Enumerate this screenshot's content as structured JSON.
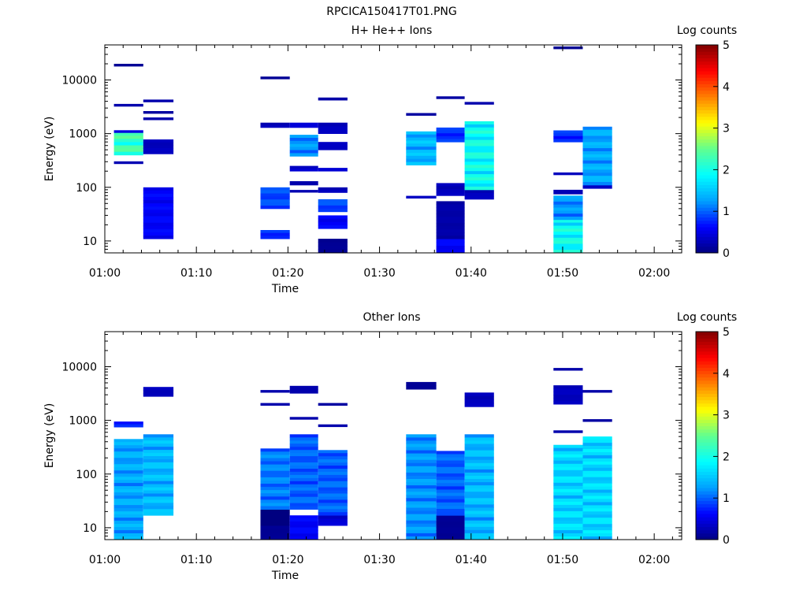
{
  "figure_title": "RPCICA150417T01.PNG",
  "colormap": [
    "#000080",
    "#0000ff",
    "#00a0ff",
    "#00ffff",
    "#60ff90",
    "#ffff00",
    "#ff8000",
    "#ff0000",
    "#800000"
  ],
  "chart_data": [
    {
      "type": "heatmap",
      "title": "H+ He++ Ions",
      "xlabel": "Time",
      "ylabel": "Energy (eV)",
      "x_ticks": [
        "01:00",
        "01:10",
        "01:20",
        "01:30",
        "01:40",
        "01:50",
        "02:00"
      ],
      "y_ticks": [
        "10",
        "100",
        "1000",
        "10000"
      ],
      "y_scale": "log",
      "ylim": [
        6,
        45000
      ],
      "xlim_minutes": [
        0,
        63
      ],
      "colorbar": {
        "label": "Log counts",
        "range": [
          0,
          5
        ],
        "ticks": [
          "0",
          "1",
          "2",
          "3",
          "4",
          "5"
        ]
      },
      "scans": [
        {
          "start": 1.0,
          "end": 4.2,
          "bins": [
            [
              400,
              1050,
              2.2
            ],
            [
              290,
              290,
              0.3
            ],
            [
              3400,
              3400,
              0.2
            ],
            [
              19000,
              19000,
              0.1
            ],
            [
              1100,
              1100,
              0.6
            ]
          ]
        },
        {
          "start": 4.2,
          "end": 7.5,
          "bins": [
            [
              11,
              100,
              0.6
            ],
            [
              420,
              780,
              0.3
            ],
            [
              1900,
              1900,
              0.2
            ],
            [
              2500,
              2500,
              0.2
            ],
            [
              4100,
              4100,
              0.2
            ]
          ]
        },
        {
          "start": 17.0,
          "end": 20.2,
          "bins": [
            [
              11,
              16,
              0.8
            ],
            [
              40,
              100,
              0.9
            ],
            [
              1300,
              1600,
              0.3
            ],
            [
              11000,
              11000,
              0.1
            ]
          ]
        },
        {
          "start": 20.2,
          "end": 23.3,
          "bins": [
            [
              110,
              130,
              0.2
            ],
            [
              200,
              250,
              0.4
            ],
            [
              380,
              950,
              1.2
            ],
            [
              1300,
              1600,
              0.4
            ],
            [
              85,
              85,
              0.3
            ]
          ]
        },
        {
          "start": 23.3,
          "end": 26.5,
          "bins": [
            [
              6,
              11,
              0.1
            ],
            [
              17,
              30,
              0.6
            ],
            [
              35,
              60,
              0.9
            ],
            [
              80,
              100,
              0.3
            ],
            [
              200,
              230,
              0.4
            ],
            [
              500,
              700,
              0.3
            ],
            [
              1000,
              1600,
              0.3
            ],
            [
              4200,
              4700,
              0.2
            ]
          ]
        },
        {
          "start": 32.9,
          "end": 36.2,
          "bins": [
            [
              260,
              1100,
              1.4
            ],
            [
              66,
              66,
              0.3
            ],
            [
              2300,
              2300,
              0.2
            ]
          ]
        },
        {
          "start": 36.2,
          "end": 39.3,
          "bins": [
            [
              6,
              11,
              0.6
            ],
            [
              11,
              55,
              0.2
            ],
            [
              70,
              120,
              0.3
            ],
            [
              700,
              1300,
              0.8
            ],
            [
              4700,
              4700,
              0.2
            ]
          ]
        },
        {
          "start": 39.3,
          "end": 42.5,
          "bins": [
            [
              60,
              90,
              0.3
            ],
            [
              90,
              1700,
              1.9
            ],
            [
              3700,
              3700,
              0.2
            ]
          ]
        },
        {
          "start": 49.0,
          "end": 52.2,
          "bins": [
            [
              6,
              25,
              1.9
            ],
            [
              25,
              70,
              1.2
            ],
            [
              75,
              90,
              0.3
            ],
            [
              180,
              180,
              0.3
            ],
            [
              700,
              1150,
              0.8
            ],
            [
              40000,
              40000,
              0.1
            ]
          ]
        },
        {
          "start": 52.2,
          "end": 55.4,
          "bins": [
            [
              95,
              110,
              0.3
            ],
            [
              110,
              1350,
              1.3
            ]
          ]
        }
      ]
    },
    {
      "type": "heatmap",
      "title": "Other Ions",
      "xlabel": "Time",
      "ylabel": "Energy (eV)",
      "x_ticks": [
        "01:00",
        "01:10",
        "01:20",
        "01:30",
        "01:40",
        "01:50",
        "02:00"
      ],
      "y_ticks": [
        "10",
        "100",
        "1000",
        "10000"
      ],
      "y_scale": "log",
      "ylim": [
        6,
        45000
      ],
      "xlim_minutes": [
        0,
        63
      ],
      "colorbar": {
        "label": "Log counts",
        "range": [
          0,
          5
        ],
        "ticks": [
          "0",
          "1",
          "2",
          "3",
          "4",
          "5"
        ]
      },
      "scans": [
        {
          "start": 1.0,
          "end": 4.2,
          "bins": [
            [
              6,
              450,
              1.3
            ],
            [
              750,
              950,
              0.8
            ]
          ]
        },
        {
          "start": 4.2,
          "end": 7.5,
          "bins": [
            [
              17,
              550,
              1.4
            ],
            [
              2800,
              4200,
              0.3
            ]
          ]
        },
        {
          "start": 17.0,
          "end": 20.2,
          "bins": [
            [
              6,
              11,
              0.1
            ],
            [
              11,
              22,
              0.0
            ],
            [
              22,
              300,
              1.1
            ],
            [
              2000,
              2000,
              0.2
            ],
            [
              3500,
              3500,
              0.2
            ]
          ]
        },
        {
          "start": 20.2,
          "end": 23.3,
          "bins": [
            [
              6,
              17,
              0.6
            ],
            [
              22,
              550,
              1.0
            ],
            [
              1100,
              1100,
              0.2
            ],
            [
              3200,
              4400,
              0.2
            ]
          ]
        },
        {
          "start": 23.3,
          "end": 26.5,
          "bins": [
            [
              11,
              17,
              0.4
            ],
            [
              17,
              280,
              1.0
            ],
            [
              800,
              800,
              0.2
            ],
            [
              2000,
              2000,
              0.2
            ]
          ]
        },
        {
          "start": 32.9,
          "end": 36.2,
          "bins": [
            [
              6,
              550,
              1.2
            ],
            [
              3800,
              5200,
              0.1
            ]
          ]
        },
        {
          "start": 36.2,
          "end": 39.3,
          "bins": [
            [
              6,
              17,
              0.1
            ],
            [
              17,
              270,
              1.0
            ]
          ]
        },
        {
          "start": 39.3,
          "end": 42.5,
          "bins": [
            [
              6,
              550,
              1.4
            ],
            [
              1800,
              3300,
              0.3
            ]
          ]
        },
        {
          "start": 49.0,
          "end": 52.2,
          "bins": [
            [
              6,
              350,
              1.6
            ],
            [
              620,
              620,
              0.2
            ],
            [
              2000,
              4500,
              0.3
            ],
            [
              9000,
              9000,
              0.2
            ]
          ]
        },
        {
          "start": 52.2,
          "end": 55.4,
          "bins": [
            [
              6,
              500,
              1.6
            ],
            [
              1000,
              1000,
              0.2
            ],
            [
              3500,
              3500,
              0.2
            ]
          ]
        }
      ]
    }
  ]
}
